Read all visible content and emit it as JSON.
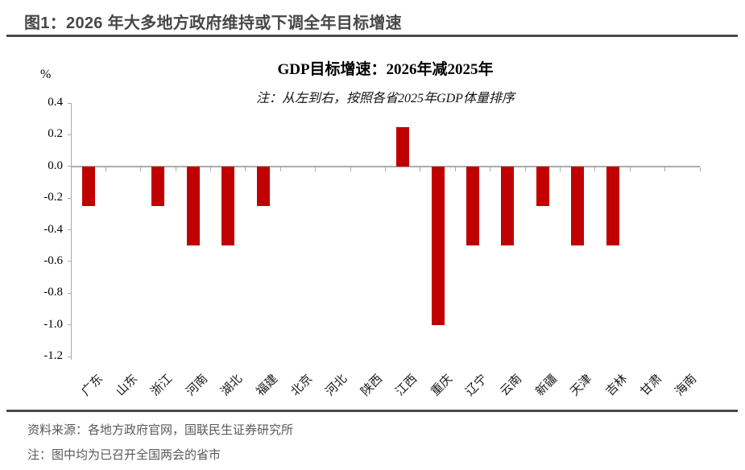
{
  "page": {
    "figure_title": "图1：2026 年大多地方政府维持或下调全年目标增速",
    "source_line": "资料来源：各地方政府官网，国联民生证券研究所",
    "note_line": "注：图中均为已召开全国两会的省市"
  },
  "chart_data": {
    "type": "bar",
    "title": "GDP目标增速：2026年减2025年",
    "subtitle": "注：从左到右，按照各省2025年GDP体量排序",
    "unit_label": "%",
    "xlabel": "",
    "ylabel": "%",
    "categories": [
      "广东",
      "山东",
      "浙江",
      "河南",
      "湖北",
      "福建",
      "北京",
      "河北",
      "陕西",
      "江西",
      "重庆",
      "辽宁",
      "云南",
      "新疆",
      "天津",
      "吉林",
      "甘肃",
      "海南"
    ],
    "values": [
      -0.25,
      0,
      -0.25,
      -0.5,
      -0.5,
      -0.25,
      0,
      0,
      0,
      0.25,
      -1.0,
      -0.5,
      -0.5,
      -0.25,
      -0.5,
      -0.5,
      0,
      0
    ],
    "y_ticks": [
      0.4,
      0.2,
      0.0,
      -0.2,
      -0.4,
      -0.6,
      -0.8,
      -1.0,
      -1.2
    ],
    "ylim": [
      -1.2,
      0.4
    ],
    "grid": false,
    "legend": "none",
    "bar_color": "#c00000",
    "axis_color": "#ababab"
  }
}
